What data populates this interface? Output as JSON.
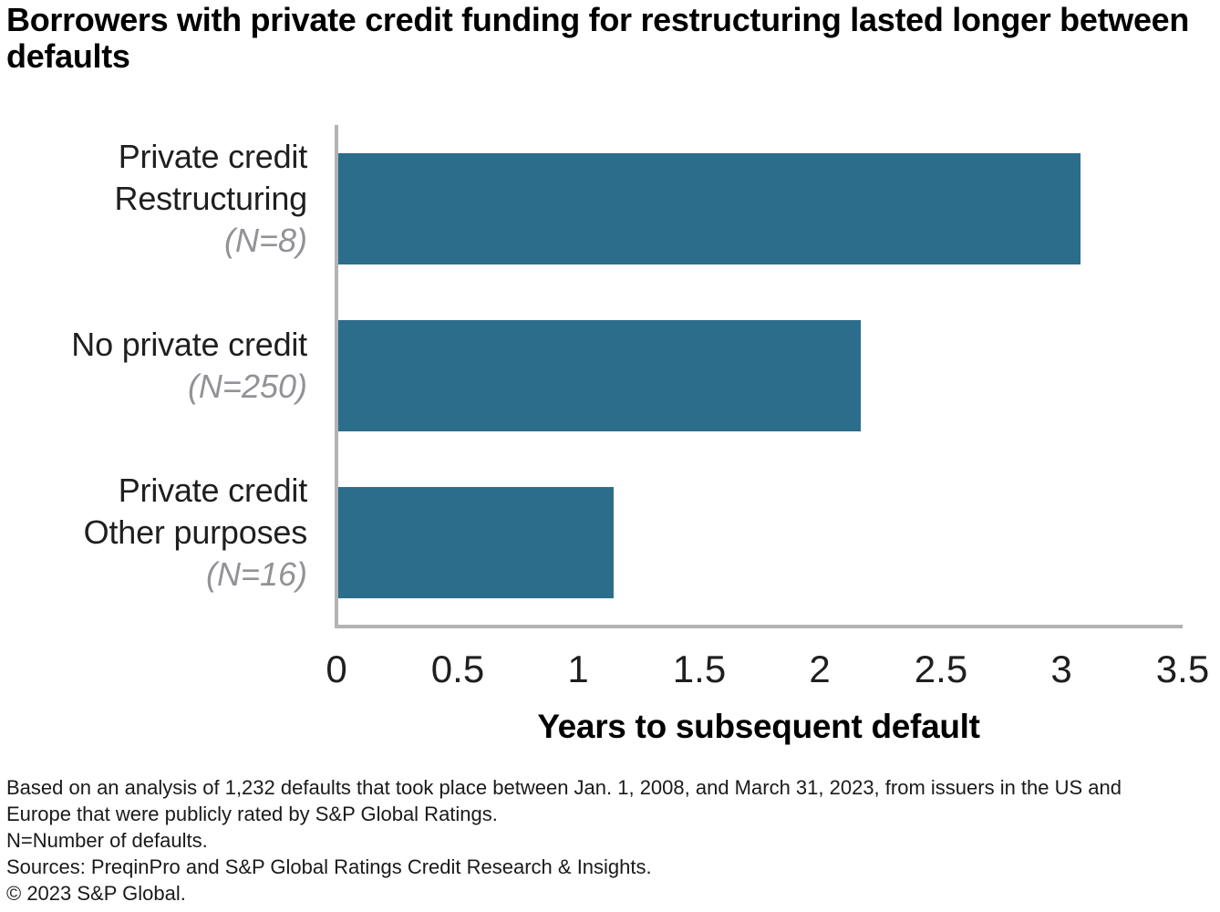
{
  "chart": {
    "title": "Borrowers with private credit funding for restructuring lasted longer between defaults",
    "xlabel": "Years to subsequent default",
    "xtick_labels": [
      "0",
      "0.5",
      "1",
      "1.5",
      "2",
      "2.5",
      "3",
      "3.5"
    ],
    "bar_color": "#2d6d8c",
    "axis_color": "#b3b3b3",
    "rows": [
      {
        "label_lines": [
          "Private credit",
          "Restructuring"
        ],
        "n_label": "(N=8)",
        "value": 3.07
      },
      {
        "label_lines": [
          "No private credit"
        ],
        "n_label": "(N=250)",
        "value": 2.16
      },
      {
        "label_lines": [
          "Private credit",
          "Other purposes"
        ],
        "n_label": "(N=16)",
        "value": 1.14
      }
    ]
  },
  "chart_data": {
    "type": "bar",
    "orientation": "horizontal",
    "title": "Borrowers with private credit funding for restructuring lasted longer between defaults",
    "categories": [
      "Private credit Restructuring (N=8)",
      "No private credit (N=250)",
      "Private credit Other purposes (N=16)"
    ],
    "values": [
      3.07,
      2.16,
      1.14
    ],
    "xlabel": "Years to subsequent default",
    "xlim": [
      0,
      3.5
    ],
    "xticks": [
      0,
      0.5,
      1,
      1.5,
      2,
      2.5,
      3,
      3.5
    ],
    "grid": false,
    "legend": false,
    "bar_color": "#2d6d8c"
  },
  "footer": {
    "lines": [
      "Based on an analysis of 1,232 defaults that took place between Jan. 1, 2008, and March 31, 2023, from issuers in the US and",
      "Europe that were publicly rated by S&P Global Ratings.",
      "N=Number of defaults.",
      "Sources: PreqinPro and S&P Global Ratings Credit Research & Insights.",
      "© 2023 S&P Global."
    ]
  }
}
